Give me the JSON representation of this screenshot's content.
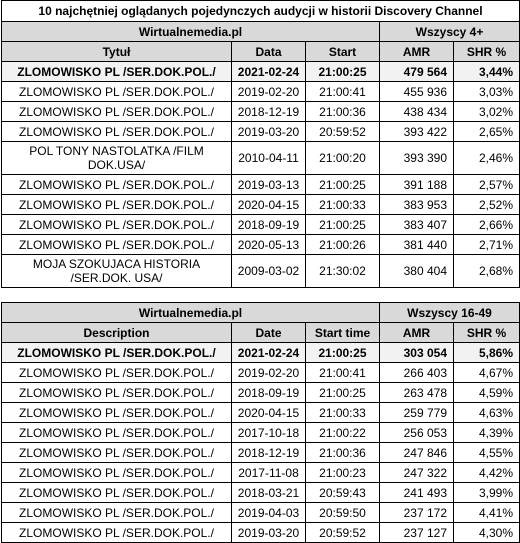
{
  "title": "10 najchętniej oglądanych pojedynczych audycji w historii Discovery Channel",
  "section1": {
    "source": "Wirtualnemedia.pl",
    "group": "Wszyscy 4+",
    "headers": [
      "Tytuł",
      "Data",
      "Start",
      "AMR",
      "SHR %"
    ],
    "rows": [
      [
        "ZLOMOWISKO PL /SER.DOK.POL./",
        "2021-02-24",
        "21:00:25",
        "479 564",
        "3,44%"
      ],
      [
        "ZLOMOWISKO PL /SER.DOK.POL./",
        "2019-02-20",
        "21:00:41",
        "455 936",
        "3,03%"
      ],
      [
        "ZLOMOWISKO PL /SER.DOK.POL./",
        "2018-12-19",
        "21:00:36",
        "438 434",
        "3,02%"
      ],
      [
        "ZLOMOWISKO PL /SER.DOK.POL./",
        "2019-03-20",
        "20:59:52",
        "393 422",
        "2,65%"
      ],
      [
        "POL TONY NASTOLATKA /FILM DOK.USA/",
        "2010-04-11",
        "21:00:20",
        "393 390",
        "2,46%"
      ],
      [
        "ZLOMOWISKO PL /SER.DOK.POL./",
        "2019-03-13",
        "21:00:25",
        "391 188",
        "2,57%"
      ],
      [
        "ZLOMOWISKO PL /SER.DOK.POL./",
        "2020-04-15",
        "21:00:33",
        "383 953",
        "2,52%"
      ],
      [
        "ZLOMOWISKO PL /SER.DOK.POL./",
        "2018-09-19",
        "21:00:25",
        "383 407",
        "2,66%"
      ],
      [
        "ZLOMOWISKO PL /SER.DOK.POL./",
        "2020-05-13",
        "21:00:26",
        "381 440",
        "2,71%"
      ],
      [
        "MOJA SZOKUJACA HISTORIA /SER.DOK. USA/",
        "2009-03-02",
        "21:30:02",
        "380 404",
        "2,68%"
      ]
    ]
  },
  "section2": {
    "source": "Wirtualnemedia.pl",
    "group": "Wszyscy 16-49",
    "headers": [
      "Description",
      "Date",
      "Start time",
      "AMR",
      "SHR %"
    ],
    "rows": [
      [
        "ZLOMOWISKO PL /SER.DOK.POL./",
        "2021-02-24",
        "21:00:25",
        "303 054",
        "5,86%"
      ],
      [
        "ZLOMOWISKO PL /SER.DOK.POL./",
        "2019-02-20",
        "21:00:41",
        "266 403",
        "4,67%"
      ],
      [
        "ZLOMOWISKO PL /SER.DOK.POL./",
        "2018-09-19",
        "21:00:25",
        "263 478",
        "4,59%"
      ],
      [
        "ZLOMOWISKO PL /SER.DOK.POL./",
        "2020-04-15",
        "21:00:33",
        "259 779",
        "4,63%"
      ],
      [
        "ZLOMOWISKO PL /SER.DOK.POL./",
        "2017-10-18",
        "21:00:22",
        "256 053",
        "4,39%"
      ],
      [
        "ZLOMOWISKO PL /SER.DOK.POL./",
        "2018-12-19",
        "21:00:36",
        "247 846",
        "4,55%"
      ],
      [
        "ZLOMOWISKO PL /SER.DOK.POL./",
        "2017-11-08",
        "21:00:23",
        "247 322",
        "4,42%"
      ],
      [
        "ZLOMOWISKO PL /SER.DOK.POL./",
        "2018-03-21",
        "20:59:43",
        "241 493",
        "3,99%"
      ],
      [
        "ZLOMOWISKO PL /SER.DOK.POL./",
        "2019-04-03",
        "20:59:50",
        "237 172",
        "4,41%"
      ],
      [
        "ZLOMOWISKO PL /SER.DOK.POL./",
        "2019-03-20",
        "20:59:52",
        "237 127",
        "4,30%"
      ]
    ]
  }
}
